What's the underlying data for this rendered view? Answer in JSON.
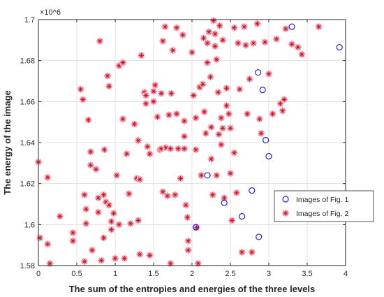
{
  "chart_data": {
    "type": "scatter",
    "xlabel": "The sum of the entropies and energies of the three levels",
    "ylabel": "The energy of the image",
    "y_exponent": "×10^6",
    "xlim": [
      0,
      4
    ],
    "ylim": [
      1.58,
      1.7
    ],
    "grid": true,
    "legend_position": "right",
    "x_ticks": [
      "0",
      "0.5",
      "1",
      "1.5",
      "2",
      "2.5",
      "3",
      "3.5",
      "4"
    ],
    "y_ticks": [
      "1.58",
      "1.6",
      "1.62",
      "1.64",
      "1.66",
      "1.68",
      "1.7"
    ],
    "colors": {
      "series1": "#2323d2",
      "series2": "#cc1111",
      "series2_halo": "#f5b9ce",
      "grid": "#e0e0e0",
      "axis": "#262626"
    },
    "series": [
      {
        "name": "Images of Fig. 1",
        "marker": "circle",
        "points": [
          [
            3.3,
            1.6965
          ],
          [
            3.92,
            1.6865
          ],
          [
            2.86,
            1.6742
          ],
          [
            2.92,
            1.6657
          ],
          [
            2.96,
            1.6412
          ],
          [
            3.0,
            1.6333
          ],
          [
            2.2,
            1.624
          ],
          [
            2.78,
            1.6166
          ],
          [
            2.42,
            1.6106
          ],
          [
            2.65,
            1.604
          ],
          [
            2.05,
            1.5987
          ],
          [
            2.87,
            1.594
          ]
        ]
      },
      {
        "name": "Images of Fig. 2",
        "marker": "asterisk",
        "points": [
          [
            0.0,
            1.6305
          ],
          [
            0.02,
            1.5935
          ],
          [
            0.12,
            1.623
          ],
          [
            0.12,
            1.5905
          ],
          [
            0.15,
            1.581
          ],
          [
            0.28,
            1.604
          ],
          [
            0.45,
            1.596
          ],
          [
            0.45,
            1.592
          ],
          [
            0.55,
            1.666
          ],
          [
            0.58,
            1.661
          ],
          [
            0.6,
            1.6145
          ],
          [
            0.62,
            1.6075
          ],
          [
            0.62,
            1.6005
          ],
          [
            0.6,
            1.582
          ],
          [
            0.65,
            1.651
          ],
          [
            0.68,
            1.6355
          ],
          [
            0.68,
            1.629
          ],
          [
            0.7,
            1.5875
          ],
          [
            0.75,
            1.627
          ],
          [
            0.78,
            1.613
          ],
          [
            0.78,
            1.606
          ],
          [
            0.8,
            1.6895
          ],
          [
            0.82,
            1.5825
          ],
          [
            0.85,
            1.5935
          ],
          [
            0.85,
            1.6145
          ],
          [
            0.86,
            1.6365
          ],
          [
            0.88,
            1.611
          ],
          [
            0.9,
            1.6725
          ],
          [
            0.92,
            1.6675
          ],
          [
            0.92,
            1.6095
          ],
          [
            0.95,
            1.6015
          ],
          [
            0.98,
            1.6055
          ],
          [
            0.95,
            1.5975
          ],
          [
            1.0,
            1.5835
          ],
          [
            1.02,
            1.624
          ],
          [
            1.05,
            1.6
          ],
          [
            1.05,
            1.6775
          ],
          [
            1.1,
            1.679
          ],
          [
            1.1,
            1.6515
          ],
          [
            1.12,
            1.5835
          ],
          [
            1.15,
            1.6345
          ],
          [
            1.18,
            1.615
          ],
          [
            1.2,
            1.6005
          ],
          [
            1.25,
            1.649
          ],
          [
            1.28,
            1.6225
          ],
          [
            1.3,
            1.641
          ],
          [
            1.32,
            1.622
          ],
          [
            1.34,
            1.6825
          ],
          [
            1.3,
            1.602
          ],
          [
            1.32,
            1.5855
          ],
          [
            1.38,
            1.6645
          ],
          [
            1.4,
            1.663
          ],
          [
            1.4,
            1.659
          ],
          [
            1.42,
            1.638
          ],
          [
            1.45,
            1.6345
          ],
          [
            1.45,
            1.585
          ],
          [
            1.5,
            1.665
          ],
          [
            1.5,
            1.66
          ],
          [
            1.52,
            1.668
          ],
          [
            1.55,
            1.6525
          ],
          [
            1.58,
            1.6365
          ],
          [
            1.6,
            1.637
          ],
          [
            1.6,
            1.664
          ],
          [
            1.62,
            1.6895
          ],
          [
            1.62,
            1.616
          ],
          [
            1.65,
            1.6965
          ],
          [
            1.66,
            1.6375
          ],
          [
            1.68,
            1.614
          ],
          [
            1.7,
            1.6535
          ],
          [
            1.72,
            1.581
          ],
          [
            1.72,
            1.637
          ],
          [
            1.73,
            1.664
          ],
          [
            1.75,
            1.685
          ],
          [
            1.78,
            1.6145
          ],
          [
            1.8,
            1.696
          ],
          [
            1.8,
            1.654
          ],
          [
            1.82,
            1.637
          ],
          [
            1.85,
            1.6225
          ],
          [
            1.88,
            1.6925
          ],
          [
            1.9,
            1.6505
          ],
          [
            1.9,
            1.643
          ],
          [
            1.9,
            1.637
          ],
          [
            1.92,
            1.6095
          ],
          [
            1.94,
            1.6035
          ],
          [
            1.95,
            1.592
          ],
          [
            1.95,
            1.5875
          ],
          [
            2.0,
            1.684
          ],
          [
            2.02,
            1.663
          ],
          [
            2.05,
            1.652
          ],
          [
            2.05,
            1.6365
          ],
          [
            2.06,
            1.5985
          ],
          [
            2.08,
            1.581
          ],
          [
            2.1,
            1.667
          ],
          [
            2.12,
            1.624
          ],
          [
            2.14,
            1.6685
          ],
          [
            2.15,
            1.691
          ],
          [
            2.16,
            1.655
          ],
          [
            2.18,
            1.6445
          ],
          [
            2.2,
            1.679
          ],
          [
            2.2,
            1.6885
          ],
          [
            2.22,
            1.694
          ],
          [
            2.24,
            1.672
          ],
          [
            2.25,
            1.6475
          ],
          [
            2.25,
            1.632
          ],
          [
            2.27,
            1.6145
          ],
          [
            2.28,
            1.6995
          ],
          [
            2.3,
            1.693
          ],
          [
            2.3,
            1.687
          ],
          [
            2.32,
            1.6805
          ],
          [
            2.32,
            1.624
          ],
          [
            2.34,
            1.6645
          ],
          [
            2.35,
            1.644
          ],
          [
            2.36,
            1.697
          ],
          [
            2.38,
            1.652
          ],
          [
            2.38,
            1.639
          ],
          [
            2.4,
            1.69
          ],
          [
            2.4,
            1.647
          ],
          [
            2.42,
            1.613
          ],
          [
            2.45,
            1.6665
          ],
          [
            2.45,
            1.658
          ],
          [
            2.48,
            1.654
          ],
          [
            2.5,
            1.647
          ],
          [
            2.5,
            1.625
          ],
          [
            2.52,
            1.602
          ],
          [
            2.55,
            1.696
          ],
          [
            2.55,
            1.635
          ],
          [
            2.58,
            1.6155
          ],
          [
            2.6,
            1.6885
          ],
          [
            2.62,
            1.666
          ],
          [
            2.65,
            1.5865
          ],
          [
            2.68,
            1.6965
          ],
          [
            2.7,
            1.6875
          ],
          [
            2.72,
            1.654
          ],
          [
            2.75,
            1.671
          ],
          [
            2.78,
            1.5865
          ],
          [
            2.8,
            1.6885
          ],
          [
            2.85,
            1.698
          ],
          [
            2.88,
            1.6515
          ],
          [
            2.9,
            1.6445
          ],
          [
            2.95,
            1.689
          ],
          [
            3.0,
            1.6735
          ],
          [
            3.05,
            1.654
          ],
          [
            3.1,
            1.6905
          ],
          [
            3.15,
            1.659
          ],
          [
            3.18,
            1.6555
          ],
          [
            3.2,
            1.661
          ],
          [
            3.22,
            1.6955
          ],
          [
            3.3,
            1.688
          ],
          [
            3.38,
            1.6865
          ],
          [
            3.43,
            1.683
          ],
          [
            3.65,
            1.6965
          ]
        ]
      }
    ]
  }
}
